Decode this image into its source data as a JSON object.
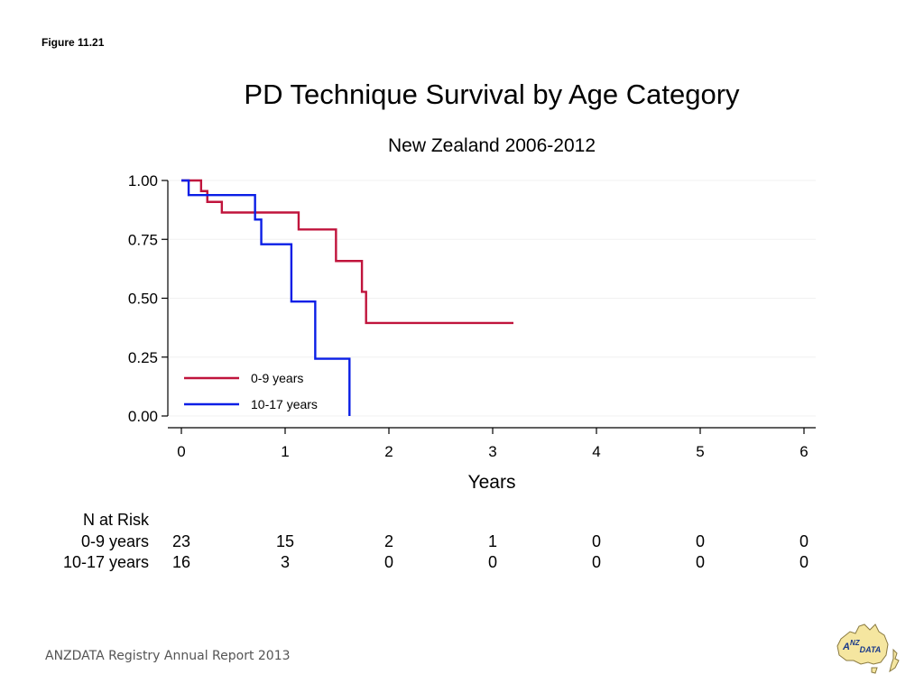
{
  "slide": {
    "figure_label": "Figure 11.21",
    "footer": "ANZDATA Registry Annual Report 2013",
    "logo_text": "ANZDATA"
  },
  "colors": {
    "series_0_9": "#c0143c",
    "series_10_17": "#0a1ee6",
    "axis": "#000000",
    "grid": "#f0f0f0",
    "logo_fill": "#f5e6a0",
    "logo_text": "#1a3a8a"
  },
  "chart_data": {
    "type": "line",
    "subtype": "kaplan-meier",
    "title": "PD Technique Survival by Age Category",
    "subtitle": "New Zealand 2006-2012",
    "xlabel": "Years",
    "ylabel": "",
    "xlim": [
      0,
      6
    ],
    "ylim": [
      0,
      1
    ],
    "xticks": [
      0,
      1,
      2,
      3,
      4,
      5,
      6
    ],
    "xtick_labels": [
      "0",
      "1",
      "2",
      "3",
      "4",
      "5",
      "6"
    ],
    "yticks": [
      0,
      0.25,
      0.5,
      0.75,
      1
    ],
    "ytick_labels": [
      "0.00",
      "0.25",
      "0.50",
      "0.75",
      "1.00"
    ],
    "grid": true,
    "legend_position": "bottom-left inside",
    "series": [
      {
        "name": "0-9 years",
        "steps": [
          [
            0,
            1.0
          ],
          [
            0.19,
            0.955
          ],
          [
            0.25,
            0.909
          ],
          [
            0.39,
            0.864
          ],
          [
            1.13,
            0.792
          ],
          [
            1.49,
            0.658
          ],
          [
            1.74,
            0.527
          ],
          [
            1.78,
            0.395
          ],
          [
            3.2,
            0.395
          ]
        ]
      },
      {
        "name": "10-17 years",
        "steps": [
          [
            0,
            1.0
          ],
          [
            0.07,
            0.938
          ],
          [
            0.71,
            0.834
          ],
          [
            0.77,
            0.729
          ],
          [
            1.06,
            0.486
          ],
          [
            1.29,
            0.243
          ],
          [
            1.62,
            0.0
          ]
        ]
      }
    ]
  },
  "risk_table": {
    "header": "N at Risk",
    "rows": [
      {
        "label": "0-9 years",
        "values": [
          "23",
          "15",
          "2",
          "1",
          "0",
          "0",
          "0"
        ]
      },
      {
        "label": "10-17 years",
        "values": [
          "16",
          "3",
          "0",
          "0",
          "0",
          "0",
          "0"
        ]
      }
    ]
  }
}
